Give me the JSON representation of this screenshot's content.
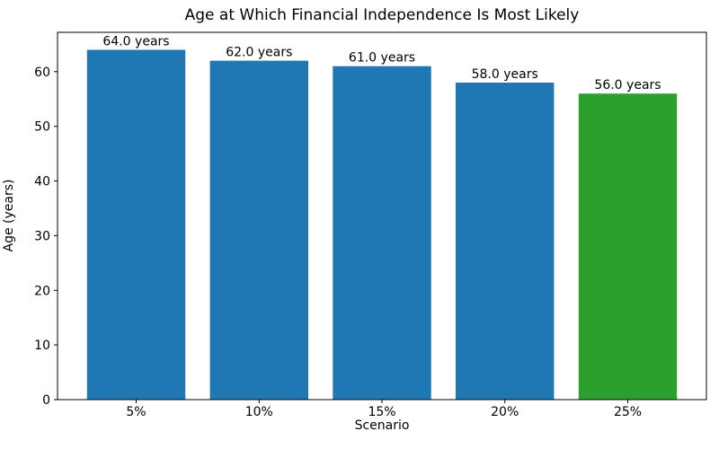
{
  "chart_data": {
    "type": "bar",
    "title": "Age at Which Financial Independence Is Most Likely",
    "xlabel": "Scenario",
    "ylabel": "Age (years)",
    "categories": [
      "5%",
      "10%",
      "15%",
      "20%",
      "25%"
    ],
    "values": [
      64.0,
      62.0,
      61.0,
      58.0,
      56.0
    ],
    "bar_labels": [
      "64.0 years",
      "62.0 years",
      "61.0 years",
      "58.0 years",
      "56.0 years"
    ],
    "bar_colors": [
      "#1f77b4",
      "#1f77b4",
      "#1f77b4",
      "#1f77b4",
      "#2ca02c"
    ],
    "ylim": [
      0,
      67.2
    ],
    "yticks": [
      0,
      10,
      20,
      30,
      40,
      50,
      60
    ],
    "grid": false,
    "legend_position": "none",
    "spine_color": "#000000",
    "background_color": "#ffffff"
  }
}
